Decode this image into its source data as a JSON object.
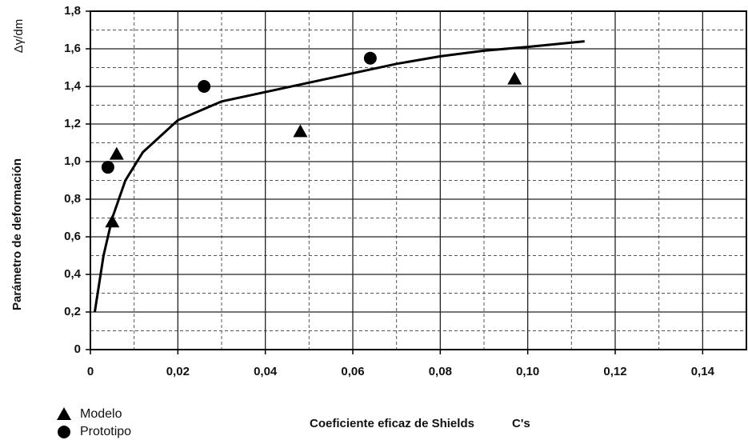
{
  "chart_data": {
    "type": "scatter",
    "y_label": "Parámetro de deformación",
    "y_label_top": "Δγ/dm",
    "x_label": "Coeficiente eficaz de Shields",
    "x_label_symbol": "C's",
    "xlim": [
      0,
      0.15
    ],
    "ylim": [
      0,
      1.8
    ],
    "xticks": [
      0,
      {
        "value": 0.02,
        "label": "0,02"
      },
      {
        "value": 0.04,
        "label": "0,04"
      },
      {
        "value": 0.06,
        "label": "0,06"
      },
      {
        "value": 0.08,
        "label": "0,08"
      },
      {
        "value": 0.1,
        "label": "0,10"
      },
      {
        "value": 0.12,
        "label": "0,12"
      },
      {
        "value": 0.14,
        "label": "0,14"
      }
    ],
    "yticks": [
      0,
      {
        "value": 0.2,
        "label": "0,2"
      },
      {
        "value": 0.4,
        "label": "0,4"
      },
      {
        "value": 0.6,
        "label": "0,6"
      },
      {
        "value": 0.8,
        "label": "0,8"
      },
      {
        "value": 1.0,
        "label": "1,0"
      },
      {
        "value": 1.2,
        "label": "1,2"
      },
      {
        "value": 1.4,
        "label": "1,4"
      },
      {
        "value": 1.6,
        "label": "1,6"
      },
      {
        "value": 1.8,
        "label": "1,8"
      }
    ],
    "xminorticks": [
      0.01,
      0.03,
      0.05,
      0.07,
      0.09,
      0.11,
      0.13
    ],
    "yminorticks": [
      0.1,
      0.3,
      0.5,
      0.7,
      0.9,
      1.1,
      1.3,
      1.5,
      1.7
    ],
    "grid": true,
    "legend": "bottom-left",
    "series": [
      {
        "name": "Modelo",
        "marker": "triangle",
        "color": "#000000",
        "x": [
          0.005,
          0.006,
          0.048,
          0.097
        ],
        "values": [
          0.68,
          1.04,
          1.16,
          1.44
        ]
      },
      {
        "name": "Prototipo",
        "marker": "circle",
        "color": "#000000",
        "x": [
          0.004,
          0.026,
          0.064
        ],
        "values": [
          0.97,
          1.4,
          1.55
        ]
      }
    ],
    "fit_line": {
      "color": "#000000",
      "x": [
        0.001,
        0.003,
        0.005,
        0.008,
        0.012,
        0.02,
        0.03,
        0.04,
        0.05,
        0.06,
        0.07,
        0.08,
        0.09,
        0.1,
        0.113
      ],
      "values": [
        0.2,
        0.5,
        0.7,
        0.9,
        1.05,
        1.22,
        1.32,
        1.37,
        1.42,
        1.47,
        1.52,
        1.56,
        1.59,
        1.61,
        1.64
      ]
    }
  }
}
